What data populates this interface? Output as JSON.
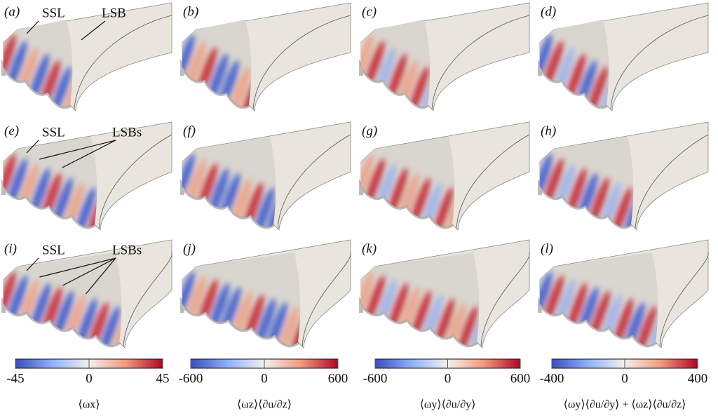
{
  "panels": [
    {
      "label": "(a)",
      "annotations": [
        "SSL",
        "LSB"
      ]
    },
    {
      "label": "(b)"
    },
    {
      "label": "(c)"
    },
    {
      "label": "(d)"
    },
    {
      "label": "(e)",
      "annotations": [
        "SSL",
        "LSBs"
      ]
    },
    {
      "label": "(f)"
    },
    {
      "label": "(g)"
    },
    {
      "label": "(h)"
    },
    {
      "label": "(i)",
      "annotations": [
        "SSL",
        "LSBs"
      ]
    },
    {
      "label": "(j)"
    },
    {
      "label": "(k)"
    },
    {
      "label": "(l)"
    }
  ],
  "colorbars": [
    {
      "label": "⟨ωx⟩",
      "lim": [
        -45,
        45
      ],
      "ticks": [
        -45,
        0,
        45
      ]
    },
    {
      "label": "⟨ωz⟩⟨∂u/∂z⟩",
      "lim": [
        -600,
        600
      ],
      "ticks": [
        -600,
        0,
        600
      ]
    },
    {
      "label": "⟨ωy⟩⟨∂u/∂y⟩",
      "lim": [
        -600,
        600
      ],
      "ticks": [
        -600,
        0,
        600
      ]
    },
    {
      "label": "⟨ωy⟩⟨∂u/∂y⟩ + ⟨ωz⟩⟨∂u/∂z⟩",
      "lim": [
        -400,
        400
      ],
      "ticks": [
        -400,
        0,
        400
      ]
    }
  ]
}
